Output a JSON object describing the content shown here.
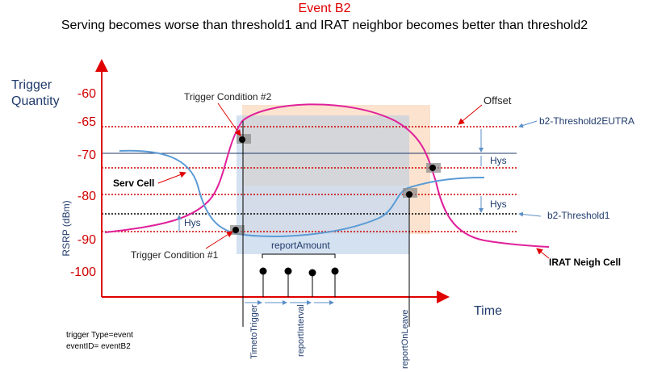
{
  "header": {
    "title": "Event B2",
    "subtitle": "Serving becomes worse than threshold1 and IRAT neighbor becomes better than threshold2"
  },
  "axis": {
    "y_title_1": "Trigger",
    "y_title_2": "Quantity",
    "y_unit": "RSRP (dBm)",
    "x_title": "Time",
    "y_labels": [
      "-60",
      "-65",
      "-70",
      "-80",
      "-90",
      "-100"
    ]
  },
  "labels": {
    "trigger2": "Trigger Condition #2",
    "trigger1": "Trigger Condition #1",
    "offset": "Offset",
    "threshold2": "b2-Threshold2EUTRA",
    "threshold1": "b2-Threshold1",
    "hys": "Hys",
    "serv": "Serv Cell",
    "neigh": "IRAT Neigh Cell",
    "report_amount": "reportAmount",
    "time_to_trigger": "TimetoTrigger",
    "report_interval": "reportInterval",
    "report_on_leave": "reportOnLeave"
  },
  "footer": {
    "line1": "trigger Type=event",
    "line2": "eventID= eventB2"
  }
}
